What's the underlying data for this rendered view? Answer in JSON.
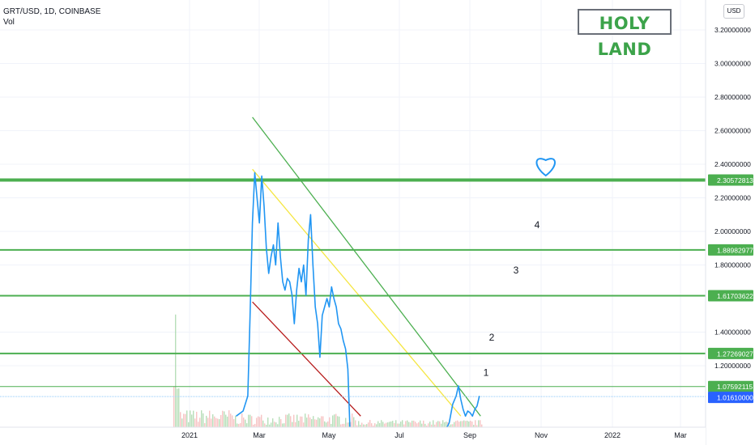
{
  "header": {
    "symbol_line": "GRT/USD, 1D, COINBASE",
    "volume_label": "Vol"
  },
  "currency_button": "USD",
  "banner_text": "HOLY LAND",
  "chart_data": {
    "type": "line",
    "y_ticks": [
      "3.20000000",
      "3.00000000",
      "2.80000000",
      "2.60000000",
      "2.40000000",
      "2.20000000",
      "2.00000000",
      "1.80000000",
      "1.40000000",
      "1.20000000"
    ],
    "x_ticks": [
      "2021",
      "Mar",
      "May",
      "Jul",
      "Sep",
      "Nov",
      "2022",
      "Mar"
    ],
    "levels": [
      {
        "label": "2.30572813",
        "value": 2.30572813,
        "color": "#4caf50"
      },
      {
        "label": "1.88982977",
        "value": 1.88982977,
        "color": "#4caf50"
      },
      {
        "label": "1.61703622",
        "value": 1.61703622,
        "color": "#4caf50"
      },
      {
        "label": "1.27269027",
        "value": 1.27269027,
        "color": "#4caf50"
      },
      {
        "label": "1.07592115",
        "value": 1.07592115,
        "color": "#4caf50"
      }
    ],
    "last_price": {
      "label": "1.01610000",
      "value": 1.0161,
      "color": "#2962ff"
    },
    "zone_numbers": [
      "1",
      "2",
      "3",
      "4"
    ],
    "series": [
      {
        "color": "#2196f3",
        "points": [
          [
            "2021-02-10",
            0.9
          ],
          [
            "2021-02-16",
            0.93
          ],
          [
            "2021-02-20",
            1.02
          ],
          [
            "2021-02-22",
            1.5
          ],
          [
            "2021-02-24",
            2.05
          ],
          [
            "2021-02-26",
            2.35
          ],
          [
            "2021-02-28",
            2.2
          ],
          [
            "2021-03-02",
            2.05
          ],
          [
            "2021-03-04",
            2.33
          ],
          [
            "2021-03-06",
            2.15
          ],
          [
            "2021-03-08",
            1.9
          ],
          [
            "2021-03-10",
            1.75
          ],
          [
            "2021-03-12",
            1.85
          ],
          [
            "2021-03-14",
            1.92
          ],
          [
            "2021-03-16",
            1.8
          ],
          [
            "2021-03-18",
            2.05
          ],
          [
            "2021-03-20",
            1.85
          ],
          [
            "2021-03-22",
            1.7
          ],
          [
            "2021-03-24",
            1.65
          ],
          [
            "2021-03-26",
            1.72
          ],
          [
            "2021-03-28",
            1.7
          ],
          [
            "2021-03-30",
            1.62
          ],
          [
            "2021-04-01",
            1.45
          ],
          [
            "2021-04-03",
            1.65
          ],
          [
            "2021-04-05",
            1.78
          ],
          [
            "2021-04-07",
            1.7
          ],
          [
            "2021-04-09",
            1.8
          ],
          [
            "2021-04-11",
            1.62
          ],
          [
            "2021-04-13",
            1.95
          ],
          [
            "2021-04-15",
            2.1
          ],
          [
            "2021-04-17",
            1.8
          ],
          [
            "2021-04-19",
            1.55
          ],
          [
            "2021-04-21",
            1.45
          ],
          [
            "2021-04-23",
            1.25
          ],
          [
            "2021-04-25",
            1.5
          ],
          [
            "2021-04-27",
            1.55
          ],
          [
            "2021-04-29",
            1.6
          ],
          [
            "2021-05-01",
            1.55
          ],
          [
            "2021-05-03",
            1.67
          ],
          [
            "2021-05-05",
            1.6
          ],
          [
            "2021-05-07",
            1.55
          ],
          [
            "2021-05-09",
            1.45
          ],
          [
            "2021-05-11",
            1.42
          ],
          [
            "2021-05-13",
            1.35
          ],
          [
            "2021-05-15",
            1.3
          ],
          [
            "2021-05-17",
            1.18
          ],
          [
            "2021-05-19",
            0.78
          ],
          [
            "2021-05-21",
            0.72
          ],
          [
            "2021-05-23",
            0.68
          ],
          [
            "2021-05-25",
            0.75
          ],
          [
            "2021-05-27",
            0.72
          ],
          [
            "2021-06-01",
            0.7
          ],
          [
            "2021-06-10",
            0.74
          ],
          [
            "2021-06-20",
            0.72
          ],
          [
            "2021-06-30",
            0.7
          ],
          [
            "2021-07-15",
            0.68
          ],
          [
            "2021-07-30",
            0.7
          ],
          [
            "2021-08-05",
            0.76
          ],
          [
            "2021-08-12",
            0.86
          ],
          [
            "2021-08-15",
            0.97
          ],
          [
            "2021-08-18",
            1.02
          ],
          [
            "2021-08-20",
            1.08
          ],
          [
            "2021-08-22",
            1.0
          ],
          [
            "2021-08-24",
            0.94
          ],
          [
            "2021-08-26",
            0.9
          ],
          [
            "2021-08-28",
            0.93
          ],
          [
            "2021-08-30",
            0.92
          ],
          [
            "2021-09-01",
            0.9
          ],
          [
            "2021-09-03",
            0.94
          ],
          [
            "2021-09-05",
            0.96
          ],
          [
            "2021-09-07",
            1.02
          ]
        ]
      }
    ],
    "trendlines": [
      {
        "color": "#4caf50",
        "from": [
          "2021-02-24",
          2.68
        ],
        "to": [
          "2021-09-08",
          0.9
        ]
      },
      {
        "color": "#f5e642",
        "from": [
          "2021-02-24",
          2.37
        ],
        "to": [
          "2021-08-22",
          0.9
        ]
      },
      {
        "color": "#b71c1c",
        "from": [
          "2021-02-24",
          1.58
        ],
        "to": [
          "2021-05-28",
          0.9
        ]
      }
    ],
    "heart_at": {
      "date": "2021-11-03",
      "price": 2.4
    }
  }
}
